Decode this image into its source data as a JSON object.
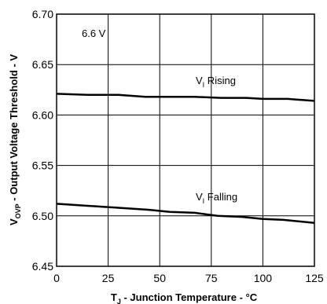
{
  "chart_data": {
    "type": "line",
    "xlabel_main": "T",
    "xlabel_sub": "J",
    "xlabel_rest": " - Junction Temperature - °C",
    "ylabel_main": "V",
    "ylabel_sub": "OVP",
    "ylabel_rest": " - Output Voltage Threshold - V",
    "xlim": [
      0,
      125
    ],
    "ylim": [
      6.45,
      6.7
    ],
    "x_ticks": [
      0,
      25,
      50,
      75,
      100,
      125
    ],
    "y_ticks": [
      6.45,
      6.5,
      6.55,
      6.6,
      6.65,
      6.7
    ],
    "x_tick_labels": [
      "0",
      "25",
      "50",
      "75",
      "100",
      "125"
    ],
    "y_tick_labels": [
      "6.45",
      "6.50",
      "6.55",
      "6.60",
      "6.65",
      "6.70"
    ],
    "grid": true,
    "series": [
      {
        "name": "Rising",
        "label_prefix": "V",
        "label_sub": "I",
        "label_suffix": " Rising",
        "x": [
          0,
          15,
          30,
          43,
          55,
          67,
          80,
          92,
          100,
          112,
          125
        ],
        "y": [
          6.621,
          6.62,
          6.62,
          6.618,
          6.618,
          6.618,
          6.617,
          6.617,
          6.616,
          6.616,
          6.614
        ]
      },
      {
        "name": "Falling",
        "label_prefix": "V",
        "label_sub": "I",
        "label_suffix": " Falling",
        "x": [
          0,
          15,
          30,
          45,
          55,
          67,
          78,
          90,
          100,
          110,
          125
        ],
        "y": [
          6.512,
          6.51,
          6.508,
          6.506,
          6.504,
          6.503,
          6.5,
          6.499,
          6.497,
          6.496,
          6.493
        ]
      }
    ],
    "annotation": "6.6 V"
  }
}
